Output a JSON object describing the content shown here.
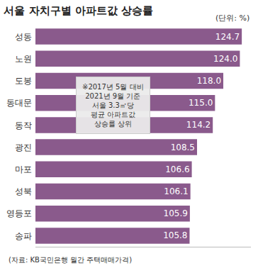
{
  "chart_data": {
    "type": "bar",
    "orientation": "horizontal",
    "title": "서울 자치구별 아파트값 상승률",
    "subtitle": "(단위: %)",
    "note": [
      "※2017년 5월 대비",
      "2021년 9월 기준",
      "서울 3.3㎡당",
      "평균 아파트값",
      "상승률 상위"
    ],
    "source": "(자료: KB국민은행 월간 주택매매가격)",
    "categories": [
      "성동",
      "노원",
      "도봉",
      "동대문",
      "동작",
      "광진",
      "마포",
      "성북",
      "영등포",
      "송파"
    ],
    "values": [
      124.7,
      124.0,
      118.0,
      115.0,
      114.2,
      108.5,
      106.6,
      106.1,
      105.9,
      105.8
    ],
    "value_labels": [
      "124.7",
      "124.0",
      "118.0",
      "115.0",
      "114.2",
      "108.5",
      "106.6",
      "106.1",
      "105.9",
      "105.8"
    ],
    "color": "#8a5a8c",
    "xlim": [
      50,
      128
    ],
    "grid": false,
    "data_labels": true,
    "tick_labels": "y"
  }
}
